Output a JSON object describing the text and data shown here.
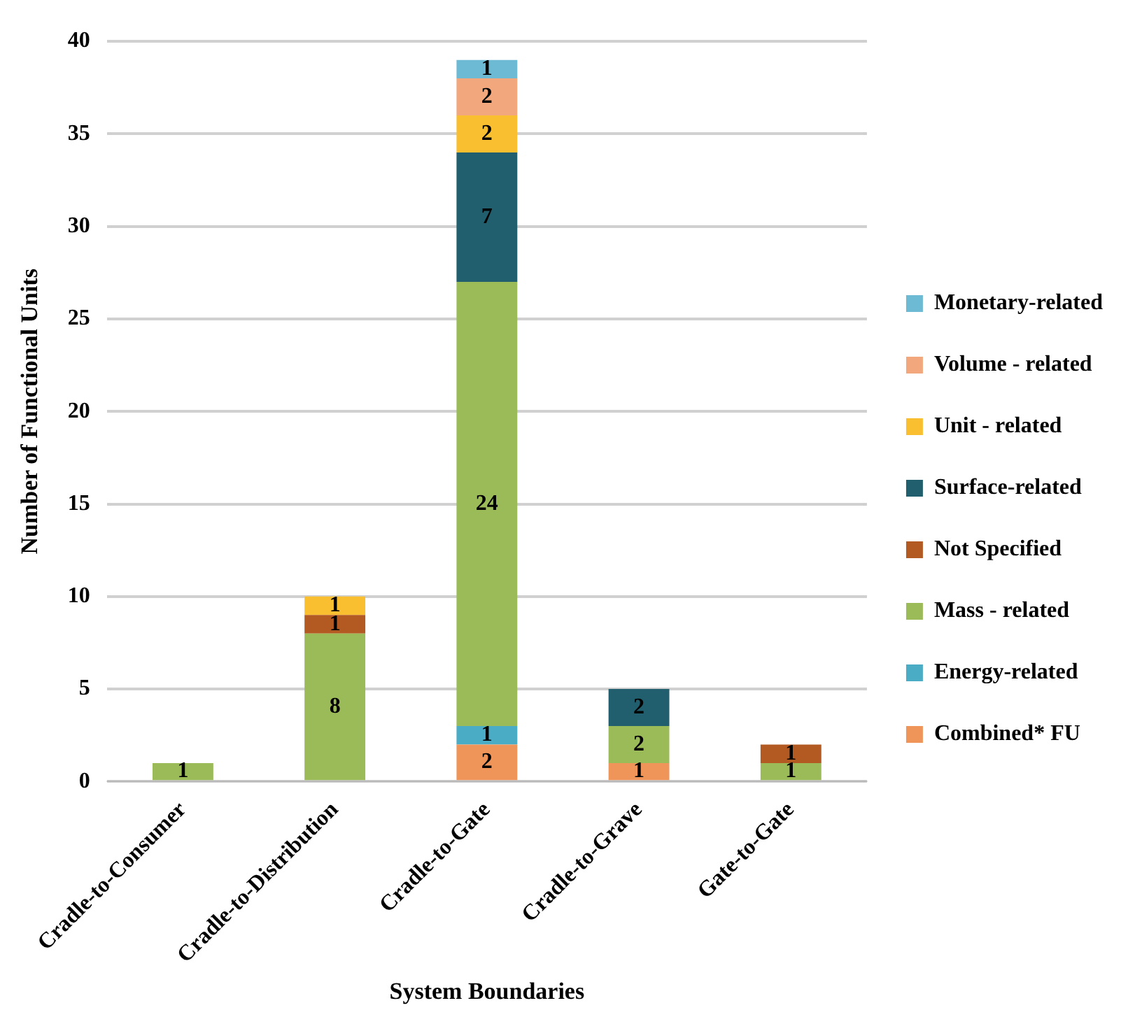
{
  "chart_data": {
    "type": "bar",
    "stacked": true,
    "xlabel": "System Boundaries",
    "ylabel": "Number of Functional Units",
    "categories": [
      "Cradle-to-Consumer",
      "Cradle-to-Distribution",
      "Cradle-to-Gate",
      "Cradle-to-Grave",
      "Gate-to-Gate"
    ],
    "series": [
      {
        "name": "Combined* FU",
        "color": "#f0955a",
        "values": [
          null,
          null,
          2,
          1,
          null
        ]
      },
      {
        "name": "Energy-related",
        "color": "#4bacc6",
        "values": [
          null,
          null,
          1,
          null,
          null
        ]
      },
      {
        "name": "Mass - related",
        "color": "#9bbb59",
        "values": [
          1,
          8,
          24,
          2,
          1
        ]
      },
      {
        "name": "Not Specified",
        "color": "#b35a22",
        "values": [
          null,
          1,
          null,
          null,
          1
        ]
      },
      {
        "name": "Surface-related",
        "color": "#215e6e",
        "values": [
          null,
          null,
          7,
          2,
          null
        ]
      },
      {
        "name": "Unit - related",
        "color": "#f9bf30",
        "values": [
          null,
          1,
          2,
          null,
          null
        ]
      },
      {
        "name": "Volume - related",
        "color": "#f2a77c",
        "values": [
          null,
          null,
          2,
          null,
          null
        ]
      },
      {
        "name": "Monetary-related",
        "color": "#6cbad3",
        "values": [
          null,
          null,
          1,
          null,
          null
        ]
      }
    ],
    "ylim": [
      0,
      40
    ],
    "yticks": [
      0,
      5,
      10,
      15,
      20,
      25,
      30,
      35,
      40
    ],
    "grid": "y",
    "legend": "right",
    "data_labels": true
  }
}
